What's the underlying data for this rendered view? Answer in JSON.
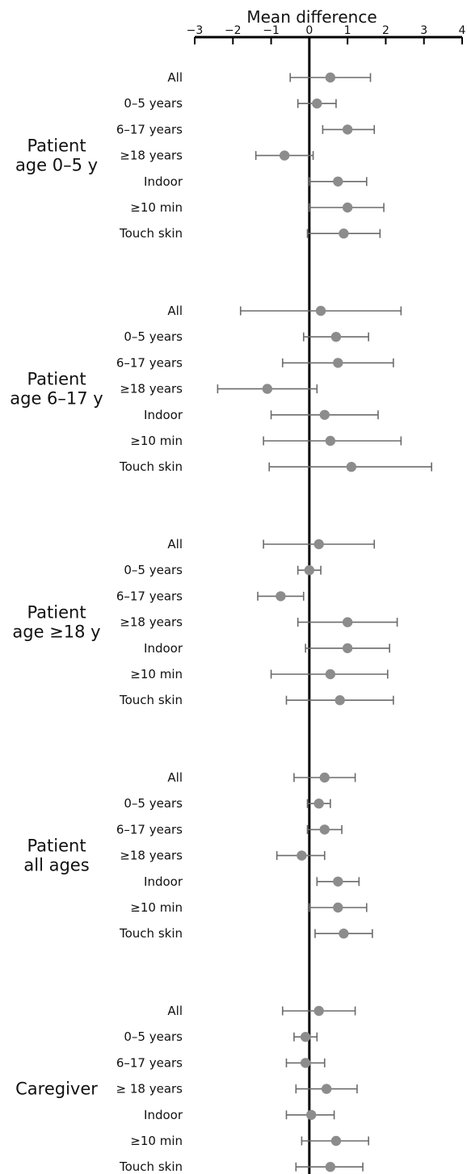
{
  "chart_data": {
    "type": "forest",
    "xlabel": "Mean difference",
    "xlim": [
      -3,
      4
    ],
    "xticks": [
      "−3",
      "−2",
      "−1",
      "0",
      "1",
      "2",
      "3",
      "4"
    ],
    "rows": [
      "All",
      "0–5 years",
      "6–17 years",
      "≥18 years",
      "Indoor",
      "≥10 min",
      "Touch skin"
    ],
    "groups": [
      {
        "label_lines": [
          "Patient",
          "age 0–5 y"
        ],
        "rows": [
          "All",
          "0–5 years",
          "6–17 years",
          "≥18 years",
          "Indoor",
          "≥10 min",
          "Touch skin"
        ],
        "estimates": [
          {
            "mean": 0.55,
            "lo": -0.5,
            "hi": 1.6
          },
          {
            "mean": 0.2,
            "lo": -0.3,
            "hi": 0.7
          },
          {
            "mean": 1.0,
            "lo": 0.35,
            "hi": 1.7
          },
          {
            "mean": -0.65,
            "lo": -1.4,
            "hi": 0.1
          },
          {
            "mean": 0.75,
            "lo": 0.0,
            "hi": 1.5
          },
          {
            "mean": 1.0,
            "lo": 0.0,
            "hi": 1.95
          },
          {
            "mean": 0.9,
            "lo": -0.05,
            "hi": 1.85
          }
        ]
      },
      {
        "label_lines": [
          "Patient",
          "age 6–17 y"
        ],
        "rows": [
          "All",
          "0–5 years",
          "6–17 years",
          "≥18 years",
          "Indoor",
          "≥10 min",
          "Touch skin"
        ],
        "estimates": [
          {
            "mean": 0.3,
            "lo": -1.8,
            "hi": 2.4
          },
          {
            "mean": 0.7,
            "lo": -0.15,
            "hi": 1.55
          },
          {
            "mean": 0.75,
            "lo": -0.7,
            "hi": 2.2
          },
          {
            "mean": -1.1,
            "lo": -2.4,
            "hi": 0.2
          },
          {
            "mean": 0.4,
            "lo": -1.0,
            "hi": 1.8
          },
          {
            "mean": 0.55,
            "lo": -1.2,
            "hi": 2.4
          },
          {
            "mean": 1.1,
            "lo": -1.05,
            "hi": 3.2
          }
        ]
      },
      {
        "label_lines": [
          "Patient",
          "age ≥18 y"
        ],
        "rows": [
          "All",
          "0–5 years",
          "6–17 years",
          "≥18 years",
          "Indoor",
          "≥10 min",
          "Touch skin"
        ],
        "estimates": [
          {
            "mean": 0.25,
            "lo": -1.2,
            "hi": 1.7
          },
          {
            "mean": 0.0,
            "lo": -0.3,
            "hi": 0.3
          },
          {
            "mean": -0.75,
            "lo": -1.35,
            "hi": -0.15
          },
          {
            "mean": 1.0,
            "lo": -0.3,
            "hi": 2.3
          },
          {
            "mean": 1.0,
            "lo": -0.1,
            "hi": 2.1
          },
          {
            "mean": 0.55,
            "lo": -1.0,
            "hi": 2.05
          },
          {
            "mean": 0.8,
            "lo": -0.6,
            "hi": 2.2
          }
        ]
      },
      {
        "label_lines": [
          "Patient",
          "all ages"
        ],
        "rows": [
          "All",
          "0–5 years",
          "6–17 years",
          "≥18 years",
          "Indoor",
          "≥10 min",
          "Touch skin"
        ],
        "estimates": [
          {
            "mean": 0.4,
            "lo": -0.4,
            "hi": 1.2
          },
          {
            "mean": 0.25,
            "lo": -0.05,
            "hi": 0.55
          },
          {
            "mean": 0.4,
            "lo": -0.05,
            "hi": 0.85
          },
          {
            "mean": -0.2,
            "lo": -0.85,
            "hi": 0.4
          },
          {
            "mean": 0.75,
            "lo": 0.2,
            "hi": 1.3
          },
          {
            "mean": 0.75,
            "lo": 0.0,
            "hi": 1.5
          },
          {
            "mean": 0.9,
            "lo": 0.15,
            "hi": 1.65
          }
        ]
      },
      {
        "label_lines": [
          "Caregiver"
        ],
        "rows": [
          "All",
          "0–5 years",
          "6–17 years",
          "≥ 18 years",
          "Indoor",
          "≥10 min",
          "Touch skin"
        ],
        "estimates": [
          {
            "mean": 0.25,
            "lo": -0.7,
            "hi": 1.2
          },
          {
            "mean": -0.1,
            "lo": -0.4,
            "hi": 0.2
          },
          {
            "mean": -0.1,
            "lo": -0.6,
            "hi": 0.4
          },
          {
            "mean": 0.45,
            "lo": -0.35,
            "hi": 1.25
          },
          {
            "mean": 0.05,
            "lo": -0.6,
            "hi": 0.65
          },
          {
            "mean": 0.7,
            "lo": -0.2,
            "hi": 1.55
          },
          {
            "mean": 0.55,
            "lo": -0.35,
            "hi": 1.4
          }
        ]
      }
    ],
    "marker_color": "#8c8c8c",
    "ci_color": "#6b6b6b",
    "axis_color": "#000000"
  }
}
